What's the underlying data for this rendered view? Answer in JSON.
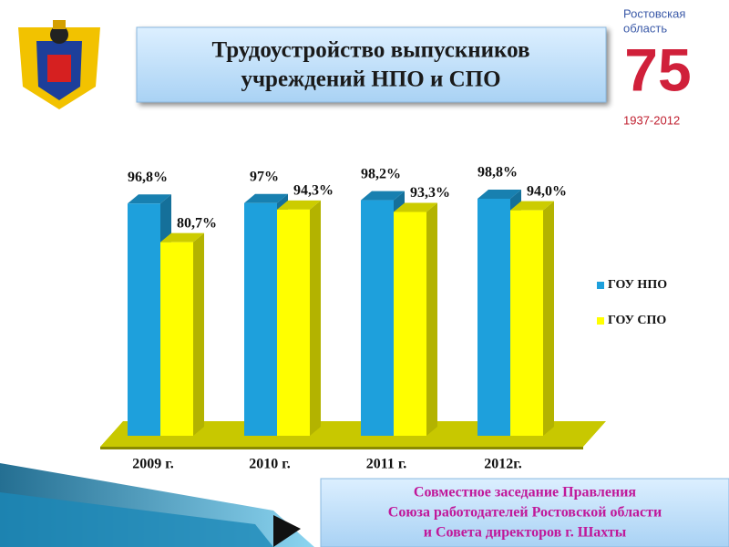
{
  "title": [
    "Трудоустройство выпускников",
    "учреждений НПО и СПО"
  ],
  "footer": [
    "Совместное заседание Правления",
    "Союза работодателей Ростовской области",
    "и Совета директоров г. Шахты"
  ],
  "logo": {
    "region": [
      "Ростовская",
      "область"
    ],
    "number": "75",
    "years": "1937-2012"
  },
  "chart_data": {
    "type": "bar",
    "categories": [
      "2009 г.",
      "2010 г.",
      "2011 г.",
      "2012г."
    ],
    "series": [
      {
        "name": "ГОУ НПО",
        "color": "#1ea0dc",
        "values": [
          96.8,
          97,
          98.2,
          98.8
        ],
        "value_labels": [
          "96,8%",
          "97%",
          "98,2%",
          "98,8%"
        ]
      },
      {
        "name": "ГОУ СПО",
        "color": "#ffff00",
        "values": [
          80.7,
          94.3,
          93.3,
          94.0
        ],
        "value_labels": [
          "80,7%",
          "94,3%",
          "93,3%",
          "94,0%"
        ]
      }
    ],
    "legend": "right"
  }
}
